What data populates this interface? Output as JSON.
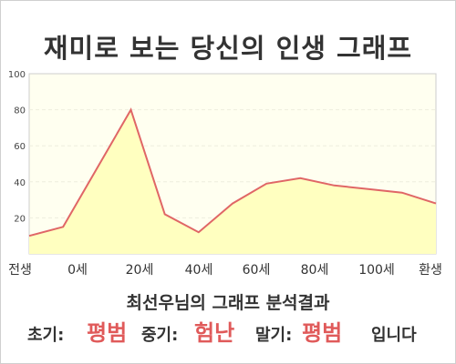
{
  "title": "재미로 보는 당신의 인생 그래프",
  "summary": "최선우님의 그래프 분석결과",
  "phases": {
    "early_label": "초기:",
    "early_value": "평범",
    "mid_label": "중기:",
    "mid_value": "험난",
    "late_label": "말기:",
    "late_value": "평범",
    "ending": "입니다"
  },
  "colors": {
    "line": "#e06666",
    "fill": "#ffffc0",
    "plot_bg": "#fffff0",
    "accent_text": "#e05a5a"
  },
  "chart_data": {
    "type": "area",
    "title": "재미로 보는 당신의 인생 그래프",
    "xlabel": "",
    "ylabel": "",
    "ylim": [
      0,
      100
    ],
    "yticks": [
      20,
      40,
      60,
      80,
      100
    ],
    "grid": true,
    "x_tick_labels": [
      "전생",
      "0세",
      "20세",
      "40세",
      "60세",
      "80세",
      "100세",
      "환생"
    ],
    "points": [
      {
        "x": -10,
        "y": 10
      },
      {
        "x": 0,
        "y": 15
      },
      {
        "x": 20,
        "y": 80
      },
      {
        "x": 30,
        "y": 22
      },
      {
        "x": 40,
        "y": 12
      },
      {
        "x": 50,
        "y": 28
      },
      {
        "x": 60,
        "y": 39
      },
      {
        "x": 70,
        "y": 42
      },
      {
        "x": 80,
        "y": 38
      },
      {
        "x": 90,
        "y": 36
      },
      {
        "x": 100,
        "y": 34
      },
      {
        "x": 110,
        "y": 28
      }
    ]
  }
}
